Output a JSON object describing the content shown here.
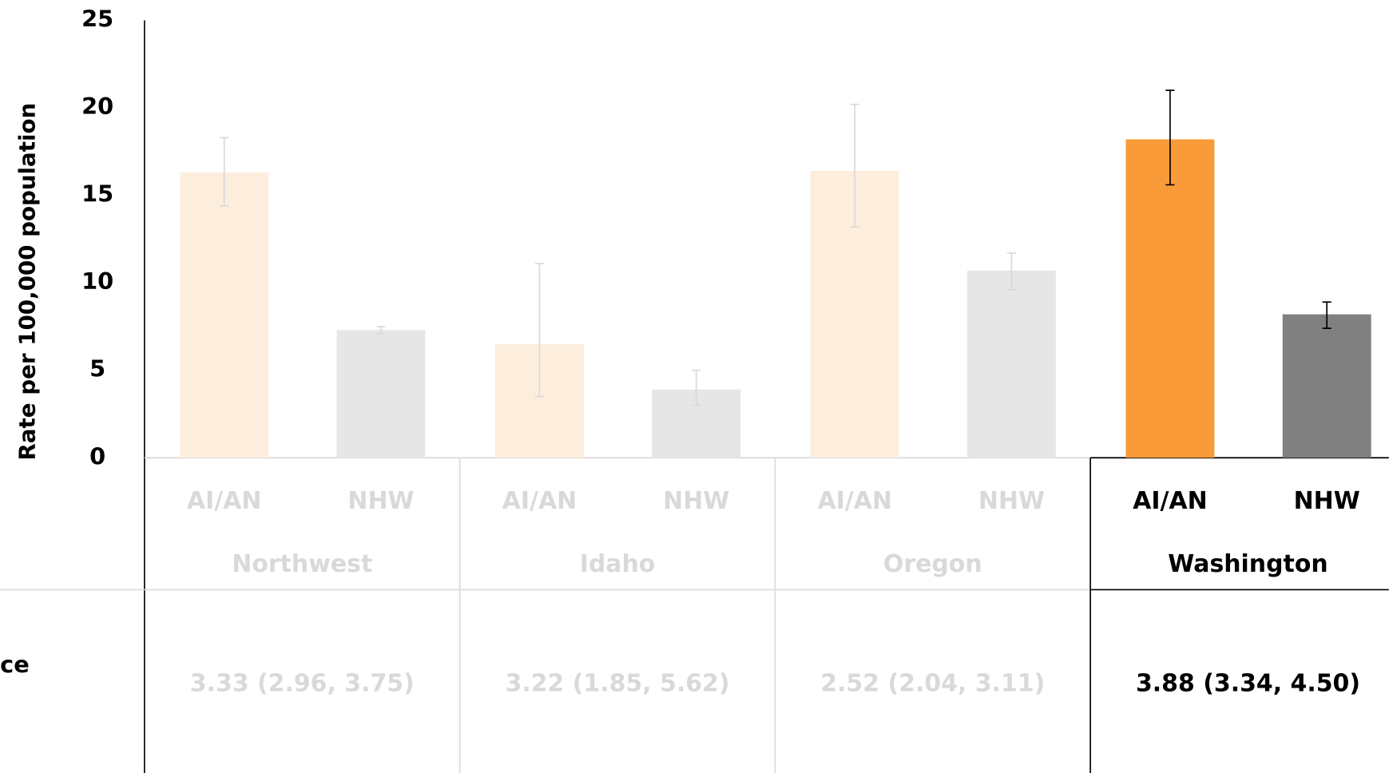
{
  "chart_data": {
    "type": "bar",
    "ylabel": "Rate per 100,000 population",
    "groups": [
      "Northwest",
      "Idaho",
      "Oregon",
      "Washington"
    ],
    "series": [
      {
        "name": "AI/AN",
        "colors": [
          "#fdeddd",
          "#fdeddd",
          "#fdeddd",
          "#f99b38"
        ],
        "values": [
          16.3,
          6.5,
          16.4,
          18.2
        ],
        "ci_low": [
          14.4,
          3.5,
          13.2,
          15.6
        ],
        "ci_high": [
          18.3,
          11.1,
          20.2,
          21.0
        ]
      },
      {
        "name": "NHW",
        "colors": [
          "#e6e6e6",
          "#e6e6e6",
          "#e6e6e6",
          "#808080"
        ],
        "values": [
          7.3,
          3.9,
          10.7,
          8.2
        ],
        "ci_low": [
          7.1,
          3.0,
          9.6,
          7.4
        ],
        "ci_high": [
          7.5,
          5.0,
          11.7,
          8.9
        ]
      }
    ],
    "label_colors": [
      "#d9d9d9",
      "#d9d9d9",
      "#d9d9d9",
      "#000000"
    ],
    "ylim": [
      0,
      25
    ],
    "yticks": [
      0,
      5,
      10,
      15,
      20,
      25
    ],
    "table": {
      "row_label": "ce",
      "cells": [
        "3.33 (2.96, 3.75)",
        "3.22 (1.85, 5.62)",
        "2.52 (2.04, 3.11)",
        "3.88 (3.34, 4.50)"
      ]
    }
  }
}
